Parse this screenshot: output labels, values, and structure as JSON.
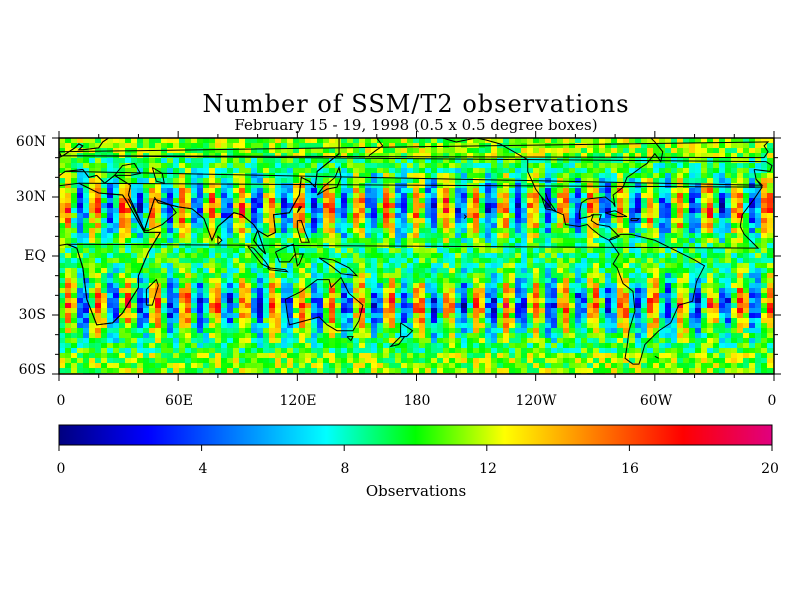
{
  "title": "Number of SSM/T2 observations",
  "subtitle": "February 15 - 19, 1998 (0.5 x 0.5 degree boxes)",
  "map": {
    "lat_labels": [
      "60N",
      "30N",
      "EQ",
      "30S",
      "60S"
    ],
    "lon_labels": [
      "0",
      "60E",
      "120E",
      "180",
      "120W",
      "60W",
      "0"
    ],
    "lat_range": [
      -60,
      60
    ],
    "lon_range": [
      0,
      360
    ]
  },
  "colorbar": {
    "title": "Observations",
    "ticks": [
      "0",
      "4",
      "8",
      "12",
      "16",
      "20"
    ],
    "range": [
      0,
      20
    ],
    "colors": [
      "#00007f",
      "#0000ff",
      "#007fff",
      "#00ffff",
      "#00ff00",
      "#ffff00",
      "#ff7f00",
      "#ff0000",
      "#e0007f"
    ]
  }
}
